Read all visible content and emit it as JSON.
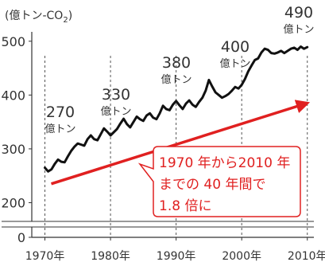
{
  "chart_data": {
    "type": "line",
    "unit_label": "(億トン-CO",
    "unit_subscript": "2",
    "unit_suffix": ")",
    "ylim": [
      180,
      510
    ],
    "yticks": [
      "500",
      "400",
      "300",
      "200"
    ],
    "ytick_values": [
      500,
      400,
      300,
      200
    ],
    "y_break": true,
    "y_zero_label": "0",
    "x_range": [
      1968,
      2011
    ],
    "xticks": [
      "1970年",
      "1980年",
      "1990年",
      "2000年",
      "2010年"
    ],
    "xtick_values": [
      1970,
      1980,
      1990,
      2000,
      2010
    ],
    "grid": false,
    "series": [
      {
        "color": "#111111",
        "x": [
          1970,
          1970.5,
          1971,
          1971.5,
          1972,
          1972.5,
          1973,
          1973.5,
          1974,
          1974.5,
          1975,
          1975.5,
          1976,
          1976.5,
          1977,
          1977.5,
          1978,
          1978.5,
          1979,
          1979.5,
          1980,
          1980.5,
          1981,
          1981.5,
          1982,
          1982.5,
          1983,
          1983.5,
          1984,
          1984.5,
          1985,
          1985.5,
          1986,
          1986.5,
          1987,
          1987.5,
          1988,
          1988.5,
          1989,
          1989.5,
          1990,
          1990.5,
          1991,
          1991.5,
          1992,
          1992.5,
          1993,
          1993.5,
          1994,
          1994.5,
          1995,
          1995.5,
          1996,
          1996.5,
          1997,
          1997.5,
          1998,
          1998.5,
          1999,
          1999.5,
          2000,
          2000.5,
          2001,
          2001.5,
          2002,
          2002.5,
          2003,
          2003.5,
          2004,
          2004.5,
          2005,
          2005.5,
          2006,
          2006.5,
          2007,
          2007.5,
          2008,
          2008.5,
          2009,
          2009.5,
          2010
        ],
        "y": [
          265,
          258,
          262,
          272,
          280,
          276,
          275,
          286,
          296,
          304,
          310,
          308,
          306,
          318,
          325,
          318,
          316,
          327,
          338,
          332,
          325,
          331,
          337,
          347,
          356,
          346,
          340,
          350,
          360,
          355,
          352,
          362,
          366,
          358,
          355,
          366,
          380,
          374,
          372,
          382,
          389,
          381,
          374,
          384,
          390,
          382,
          378,
          387,
          395,
          408,
          428,
          416,
          405,
          400,
          395,
          398,
          402,
          408,
          415,
          412,
          419,
          430,
          444,
          455,
          465,
          468,
          479,
          486,
          484,
          478,
          477,
          479,
          482,
          478,
          482,
          486,
          488,
          484,
          490,
          486,
          489
        ]
      }
    ],
    "annotations": [
      {
        "value": "270",
        "unit": "億トン"
      },
      {
        "value": "330",
        "unit": "億トン"
      },
      {
        "value": "380",
        "unit": "億トン"
      },
      {
        "value": "400",
        "unit": "億トン"
      },
      {
        "value": "490",
        "unit": "億トン"
      }
    ],
    "trend": {
      "color": "#e02020",
      "from": [
        1970,
        235
      ],
      "to": [
        2010,
        385
      ]
    },
    "callout": {
      "lines": [
        "1970 年から2010 年",
        "までの 40 年間で",
        "1.8 倍に"
      ],
      "color": "#e02020"
    }
  }
}
